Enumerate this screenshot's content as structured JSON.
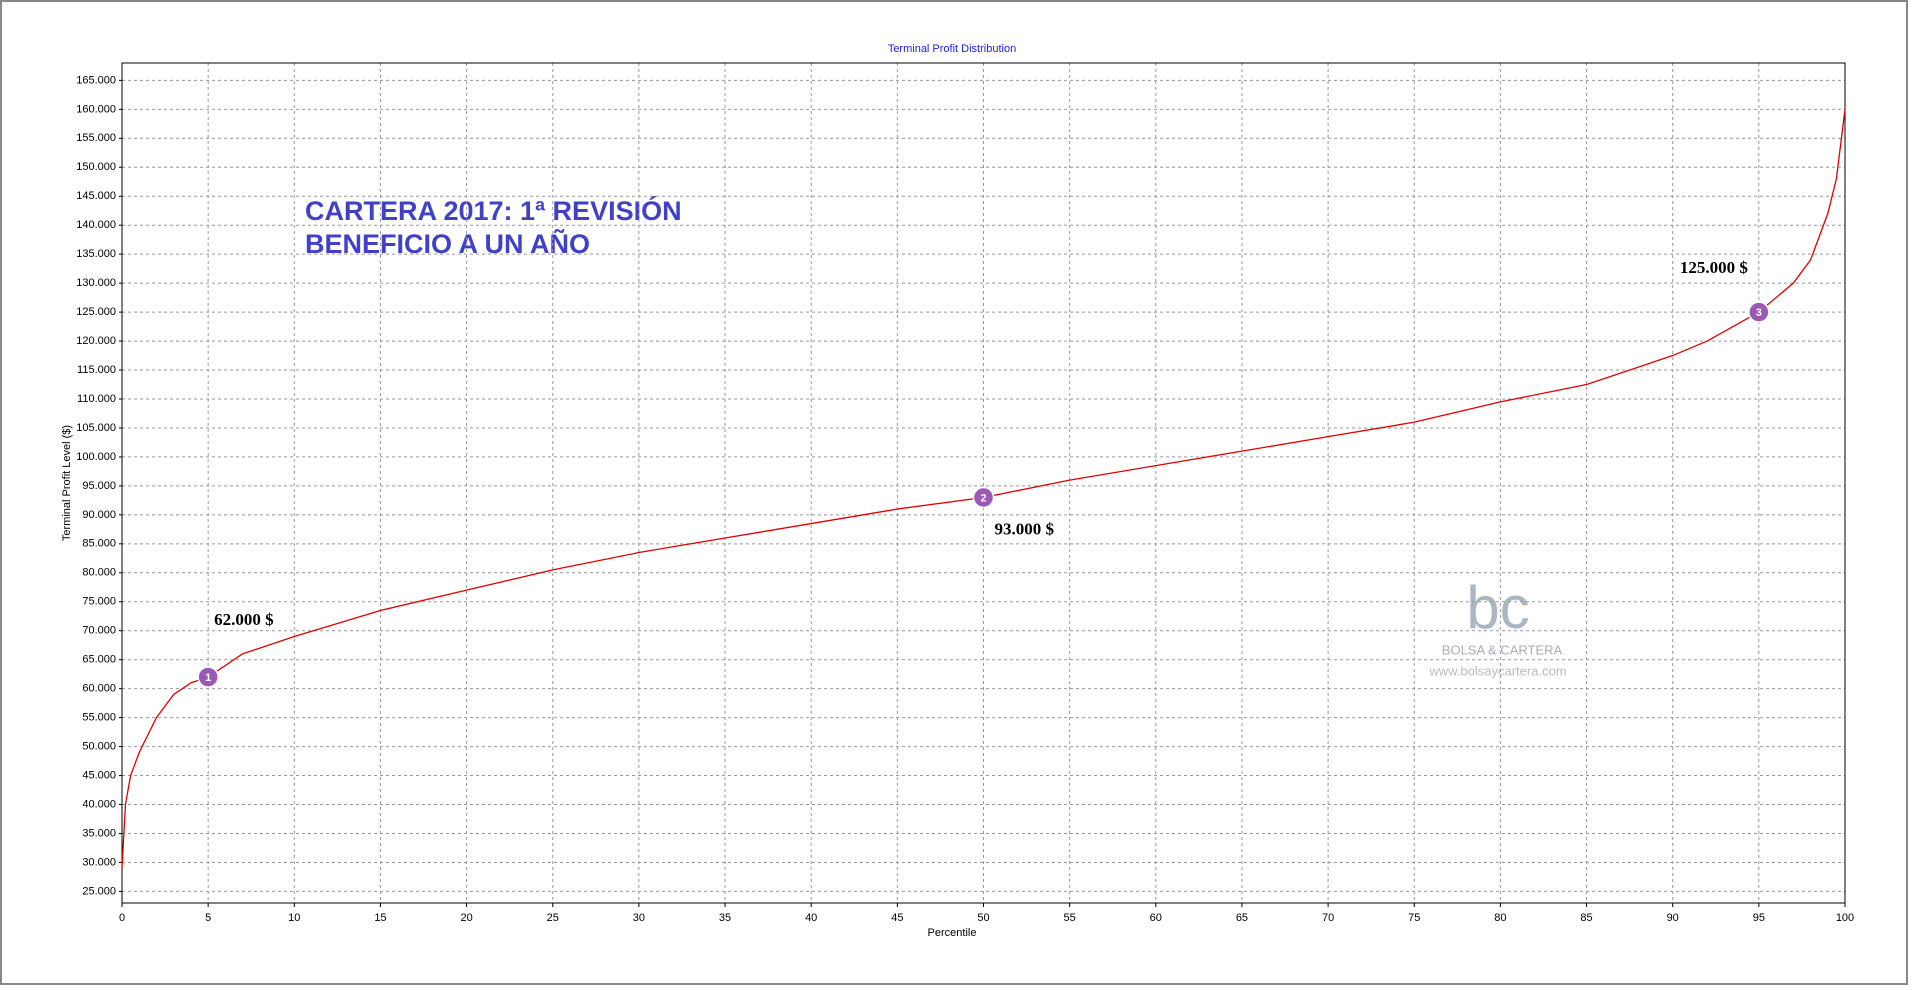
{
  "chart_data": {
    "type": "line",
    "title": "Terminal Profit Distribution",
    "x_label": "Percentile",
    "y_label": "Terminal Profit Level ($)",
    "annotations": [
      "CARTERA 2017: 1ª REVISIÓN",
      "BENEFICIO A UN AÑO"
    ],
    "watermark": {
      "logo": "bc",
      "name": "BOLSA & CARTERA",
      "url": "www.bolsaycartera.com"
    },
    "series": [
      {
        "name": "Terminal Profit",
        "color": "#e00000",
        "x": [
          0,
          0.2,
          0.5,
          1,
          2,
          3,
          4,
          5,
          7,
          10,
          15,
          20,
          25,
          30,
          35,
          40,
          45,
          50,
          55,
          60,
          65,
          70,
          75,
          80,
          85,
          90,
          92,
          95,
          97,
          98,
          99,
          99.5,
          100
        ],
        "values": [
          29000,
          40000,
          45000,
          49000,
          55000,
          59000,
          61000,
          62000,
          66000,
          69000,
          73500,
          77000,
          80500,
          83500,
          86000,
          88500,
          91000,
          93000,
          96000,
          98500,
          101000,
          103500,
          106000,
          109500,
          112500,
          117500,
          120000,
          125000,
          130000,
          134000,
          142000,
          148000,
          160000
        ]
      }
    ],
    "markers": [
      {
        "label": "1",
        "x": 5,
        "y": 62000,
        "text": "62.000 $"
      },
      {
        "label": "2",
        "x": 50,
        "y": 93000,
        "text": "93.000 $"
      },
      {
        "label": "3",
        "x": 95,
        "y": 125000,
        "text": "125.000 $"
      }
    ],
    "marker_color": "#9b59b6",
    "xlim": [
      0,
      100
    ],
    "xticks": [
      0,
      5,
      10,
      15,
      20,
      25,
      30,
      35,
      40,
      45,
      50,
      55,
      60,
      65,
      70,
      75,
      80,
      85,
      90,
      95,
      100
    ],
    "ylim": [
      23000,
      168000
    ],
    "yticks": [
      {
        "value": 25000,
        "label": "25.000"
      },
      {
        "value": 30000,
        "label": "30.000"
      },
      {
        "value": 35000,
        "label": "35.000"
      },
      {
        "value": 40000,
        "label": "40.000"
      },
      {
        "value": 45000,
        "label": "45.000"
      },
      {
        "value": 50000,
        "label": "50.000"
      },
      {
        "value": 55000,
        "label": "55.000"
      },
      {
        "value": 60000,
        "label": "60.000"
      },
      {
        "value": 65000,
        "label": "65.000"
      },
      {
        "value": 70000,
        "label": "70.000"
      },
      {
        "value": 75000,
        "label": "75.000"
      },
      {
        "value": 80000,
        "label": "80.000"
      },
      {
        "value": 85000,
        "label": "85.000"
      },
      {
        "value": 90000,
        "label": "90.000"
      },
      {
        "value": 95000,
        "label": "95.000"
      },
      {
        "value": 100000,
        "label": "100.000"
      },
      {
        "value": 105000,
        "label": "105.000"
      },
      {
        "value": 110000,
        "label": "110.000"
      },
      {
        "value": 115000,
        "label": "115.000"
      },
      {
        "value": 120000,
        "label": "120.000"
      },
      {
        "value": 125000,
        "label": "125.000"
      },
      {
        "value": 130000,
        "label": "130.000"
      },
      {
        "value": 135000,
        "label": "135.000"
      },
      {
        "value": 140000,
        "label": "140.000"
      },
      {
        "value": 145000,
        "label": "145.000"
      },
      {
        "value": 150000,
        "label": "150.000"
      },
      {
        "value": 155000,
        "label": "155.000"
      },
      {
        "value": 160000,
        "label": "160.000"
      },
      {
        "value": 165000,
        "label": "165.000"
      }
    ],
    "grid": true
  }
}
